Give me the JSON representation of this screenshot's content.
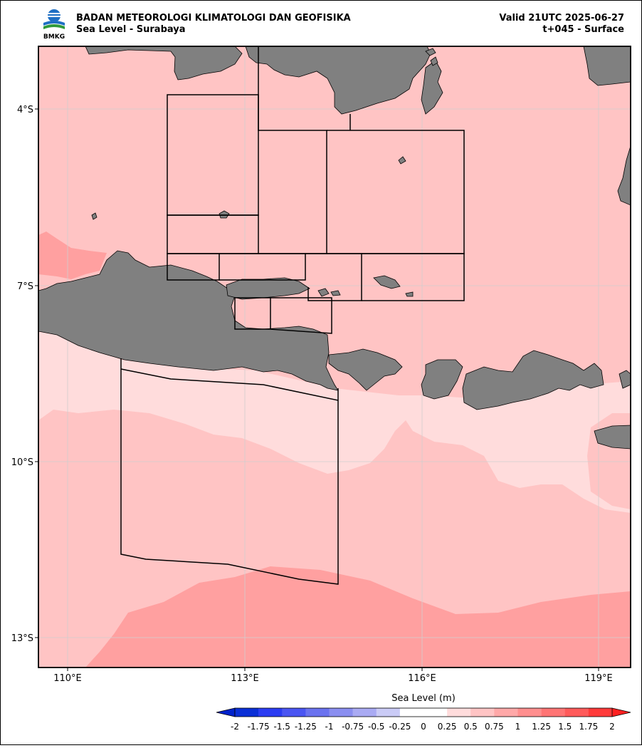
{
  "header": {
    "org_name": "BADAN METEOROLOGI KLIMATOLOGI DAN GEOFISIKA",
    "product": "Sea Level - Surabaya",
    "valid": "Valid 21UTC 2025-06-27",
    "lead": "t+045 - Surface",
    "logo_text": "BMKG"
  },
  "axes": {
    "lon_ticks": [
      {
        "value": 110,
        "label": "110°E"
      },
      {
        "value": 113,
        "label": "113°E"
      },
      {
        "value": 116,
        "label": "116°E"
      },
      {
        "value": 119,
        "label": "119°E"
      }
    ],
    "lat_ticks": [
      {
        "value": -4,
        "label": "4°S"
      },
      {
        "value": -7,
        "label": "7°S"
      },
      {
        "value": -10,
        "label": "10°S"
      },
      {
        "value": -13,
        "label": "13°S"
      }
    ],
    "lon_range": [
      109.5,
      119.55
    ],
    "lat_range": [
      -3.0,
      -13.55
    ],
    "grid": true
  },
  "colorbar": {
    "title": "Sea Level (m)",
    "labels": [
      "-2",
      "-1.75",
      "-1.5",
      "-1.25",
      "-1",
      "-0.75",
      "-0.5",
      "-0.25",
      "0",
      "0.25",
      "0.5",
      "0.75",
      "1",
      "1.25",
      "1.5",
      "1.75",
      "2"
    ],
    "colors": [
      "#0a2fd6",
      "#2b3cf2",
      "#4a55f2",
      "#6a72ef",
      "#8a8ef0",
      "#a9aaf3",
      "#cacbf6",
      "#ffffff",
      "#ffffff",
      "#ffdcdc",
      "#ffc4c4",
      "#ffa8a8",
      "#ff8e8e",
      "#ff7474",
      "#ff5a5a",
      "#ff3a3a"
    ],
    "extend_low": "#0022cc",
    "extend_high": "#ff2020"
  },
  "colors": {
    "land": "#808080",
    "sea_025_05": "#ffdcdc",
    "sea_05_075": "#ffc4c4",
    "sea_075_1": "#ffa0a0"
  }
}
